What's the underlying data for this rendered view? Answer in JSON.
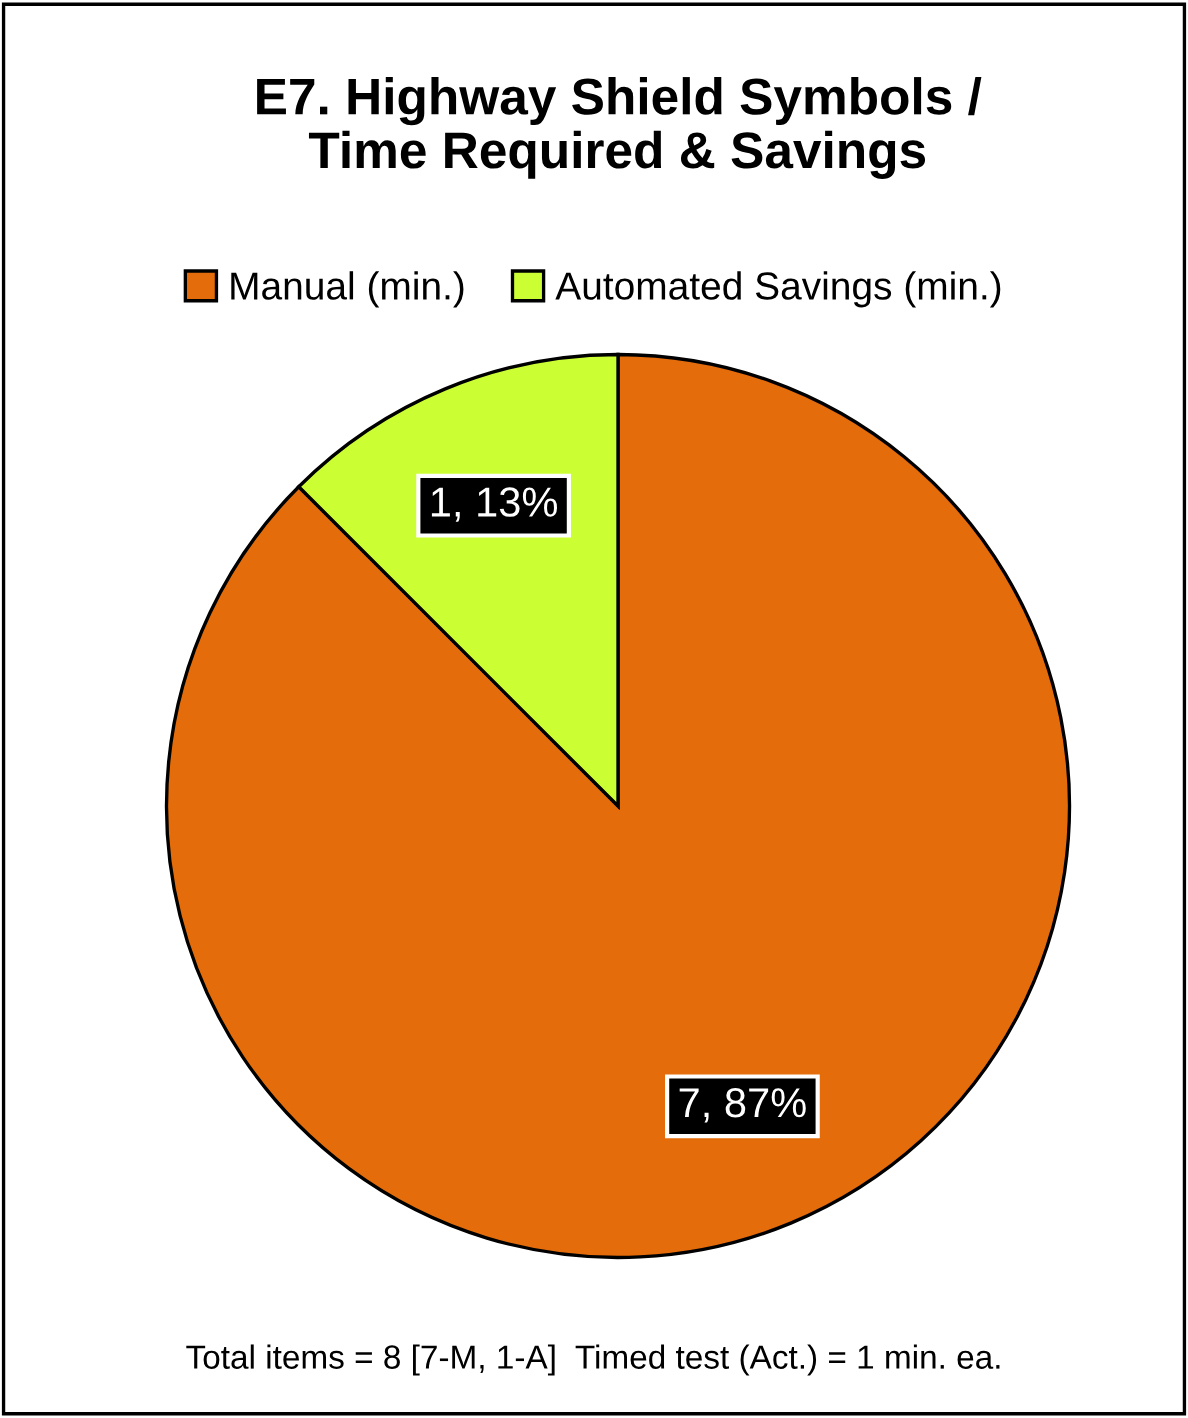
{
  "chart_data": {
    "type": "pie",
    "title": "E7. Highway Shield Symbols /\nTime Required & Savings",
    "categories": [
      "Manual (min.)",
      "Automated Savings (min.)"
    ],
    "values": [
      7,
      1
    ],
    "colors": [
      "#e46c0a",
      "#ccff33"
    ],
    "value_labels": [
      "7, 87%",
      "1, 13%"
    ],
    "legend": "top",
    "annotations": [
      "Total items = 8 [7-M, 1-A]  Timed test (Act.) = 1 min. ea."
    ]
  }
}
